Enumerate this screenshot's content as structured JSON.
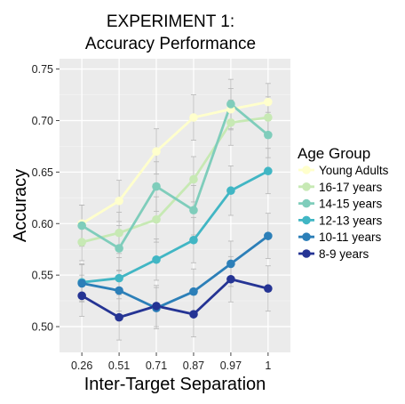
{
  "chart_data": {
    "type": "line",
    "title": [
      "EXPERIMENT 1:",
      "Accuracy Performance"
    ],
    "xlabel": "Inter-Target Separation",
    "ylabel": "Accuracy",
    "categories": [
      "0.26",
      "0.51",
      "0.71",
      "0.87",
      "0.97",
      "1"
    ],
    "ylim": [
      0.475,
      0.76
    ],
    "yticks": [
      "0.50",
      "0.55",
      "0.60",
      "0.65",
      "0.70",
      "0.75"
    ],
    "grid": true,
    "legend": {
      "title": "Age Group",
      "placement": "right"
    },
    "series": [
      {
        "name": "Young Adults",
        "color": "#ffffcc",
        "values": [
          0.6,
          0.622,
          0.67,
          0.703,
          0.711,
          0.718
        ],
        "err": [
          0.018,
          0.02,
          0.022,
          0.022,
          0.02,
          0.018
        ]
      },
      {
        "name": "16-17 years",
        "color": "#c7e9b4",
        "values": [
          0.582,
          0.591,
          0.604,
          0.643,
          0.698,
          0.703
        ],
        "err": [
          0.018,
          0.02,
          0.022,
          0.022,
          0.022,
          0.02
        ]
      },
      {
        "name": "14-15 years",
        "color": "#7fcdbb",
        "values": [
          0.598,
          0.576,
          0.636,
          0.613,
          0.716,
          0.686
        ],
        "err": [
          0.02,
          0.022,
          0.024,
          0.024,
          0.024,
          0.022
        ]
      },
      {
        "name": "12-13 years",
        "color": "#41b6c4",
        "values": [
          0.543,
          0.547,
          0.565,
          0.584,
          0.632,
          0.651
        ],
        "err": [
          0.018,
          0.02,
          0.02,
          0.022,
          0.024,
          0.022
        ]
      },
      {
        "name": "10-11 years",
        "color": "#2c7fb8",
        "values": [
          0.542,
          0.535,
          0.518,
          0.534,
          0.561,
          0.588
        ],
        "err": [
          0.018,
          0.02,
          0.02,
          0.022,
          0.022,
          0.022
        ]
      },
      {
        "name": "8-9 years",
        "color": "#253494",
        "values": [
          0.53,
          0.509,
          0.52,
          0.512,
          0.546,
          0.537
        ],
        "err": [
          0.02,
          0.022,
          0.02,
          0.022,
          0.022,
          0.022
        ]
      }
    ]
  }
}
